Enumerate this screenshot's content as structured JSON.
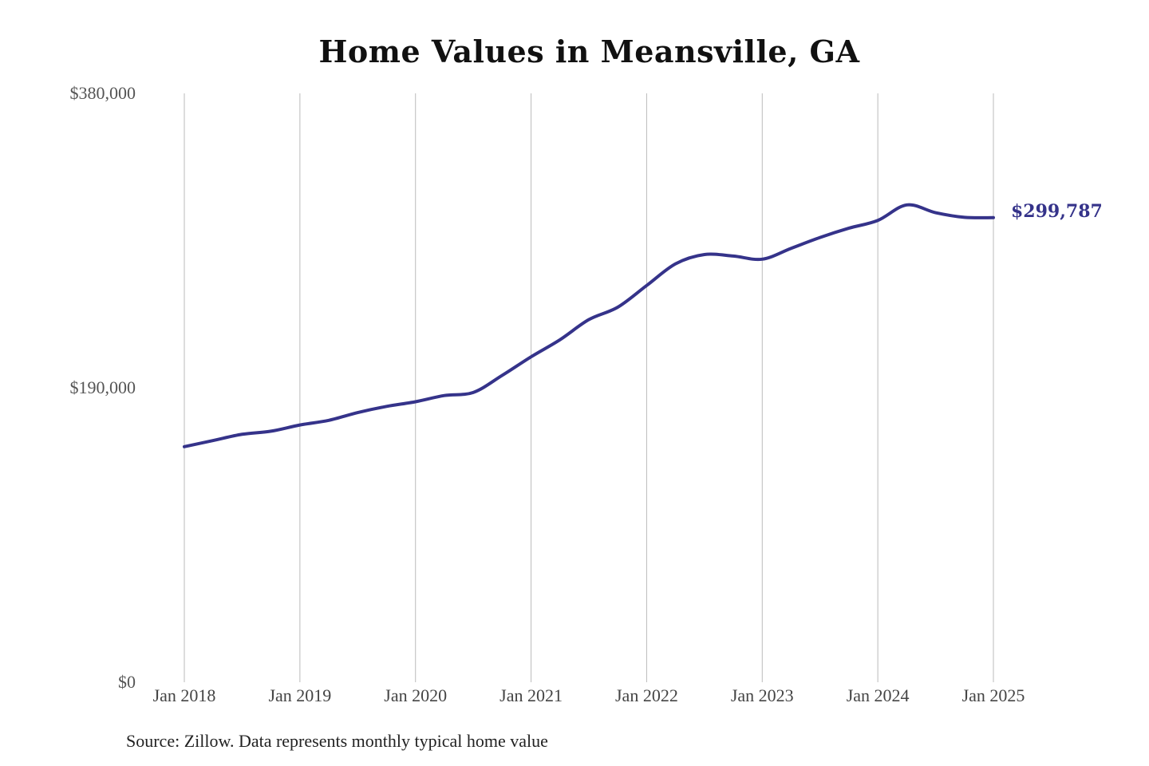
{
  "title": "Home Values in Meansville, GA",
  "source": "Source: Zillow. Data represents monthly typical home value",
  "colors": {
    "line": "#35338a",
    "grid": "#bbbbbb"
  },
  "chart_data": {
    "type": "line",
    "title": "Home Values in Meansville, GA",
    "xlabel": "",
    "ylabel": "",
    "ylim": [
      0,
      380000
    ],
    "xlim": [
      "2018-01",
      "2025-01"
    ],
    "grid": "vertical only",
    "y_ticks": [
      {
        "value": 0,
        "label": "$0"
      },
      {
        "value": 190000,
        "label": "$190,000"
      },
      {
        "value": 380000,
        "label": "$380,000"
      }
    ],
    "x_ticks": [
      {
        "value": "2018-01",
        "label": "Jan 2018"
      },
      {
        "value": "2019-01",
        "label": "Jan 2019"
      },
      {
        "value": "2020-01",
        "label": "Jan 2020"
      },
      {
        "value": "2021-01",
        "label": "Jan 2021"
      },
      {
        "value": "2022-01",
        "label": "Jan 2022"
      },
      {
        "value": "2023-01",
        "label": "Jan 2023"
      },
      {
        "value": "2024-01",
        "label": "Jan 2024"
      },
      {
        "value": "2025-01",
        "label": "Jan 2025"
      }
    ],
    "end_label": "$299,787",
    "series": [
      {
        "points": [
          {
            "x": "2018-01",
            "y": 152000
          },
          {
            "x": "2018-04",
            "y": 156000
          },
          {
            "x": "2018-07",
            "y": 160000
          },
          {
            "x": "2018-10",
            "y": 162000
          },
          {
            "x": "2019-01",
            "y": 166000
          },
          {
            "x": "2019-04",
            "y": 169000
          },
          {
            "x": "2019-07",
            "y": 174000
          },
          {
            "x": "2019-10",
            "y": 178000
          },
          {
            "x": "2020-01",
            "y": 181000
          },
          {
            "x": "2020-04",
            "y": 185000
          },
          {
            "x": "2020-07",
            "y": 187000
          },
          {
            "x": "2020-10",
            "y": 198000
          },
          {
            "x": "2021-01",
            "y": 210000
          },
          {
            "x": "2021-04",
            "y": 221000
          },
          {
            "x": "2021-07",
            "y": 234000
          },
          {
            "x": "2021-10",
            "y": 242000
          },
          {
            "x": "2022-01",
            "y": 256000
          },
          {
            "x": "2022-04",
            "y": 270000
          },
          {
            "x": "2022-07",
            "y": 276000
          },
          {
            "x": "2022-10",
            "y": 275000
          },
          {
            "x": "2023-01",
            "y": 273000
          },
          {
            "x": "2023-04",
            "y": 280000
          },
          {
            "x": "2023-07",
            "y": 287000
          },
          {
            "x": "2023-10",
            "y": 293000
          },
          {
            "x": "2024-01",
            "y": 298000
          },
          {
            "x": "2024-04",
            "y": 308000
          },
          {
            "x": "2024-07",
            "y": 303000
          },
          {
            "x": "2024-10",
            "y": 300000
          },
          {
            "x": "2025-01",
            "y": 299787
          }
        ]
      }
    ]
  }
}
